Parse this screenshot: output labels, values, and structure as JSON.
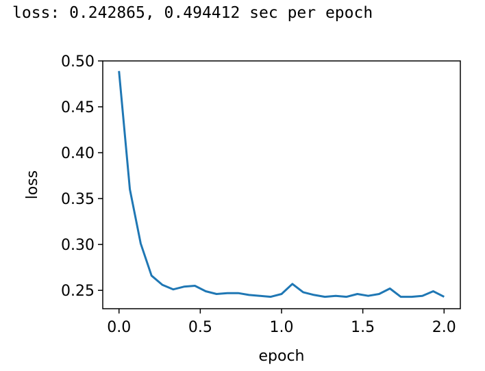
{
  "status": {
    "text": "loss: 0.242865, 0.494412 sec per epoch"
  },
  "chart_data": {
    "type": "line",
    "title": "",
    "xlabel": "epoch",
    "ylabel": "loss",
    "xlim": [
      -0.1,
      2.1
    ],
    "ylim": [
      0.23,
      0.5
    ],
    "xticks": [
      0.0,
      0.5,
      1.0,
      1.5,
      2.0
    ],
    "xtick_labels": [
      "0.0",
      "0.5",
      "1.0",
      "1.5",
      "2.0"
    ],
    "yticks": [
      0.25,
      0.3,
      0.35,
      0.4,
      0.45,
      0.5
    ],
    "ytick_labels": [
      "0.25",
      "0.30",
      "0.35",
      "0.40",
      "0.45",
      "0.50"
    ],
    "grid": false,
    "series_color": "#1f77b4",
    "series": [
      {
        "x": [
          0.0,
          0.0667,
          0.1333,
          0.2,
          0.2667,
          0.3333,
          0.4,
          0.4667,
          0.5333,
          0.6,
          0.6667,
          0.7333,
          0.8,
          0.8667,
          0.9333,
          1.0,
          1.0667,
          1.1333,
          1.2,
          1.2667,
          1.3333,
          1.4,
          1.4667,
          1.5333,
          1.6,
          1.6667,
          1.7333,
          1.8,
          1.8667,
          1.9333,
          2.0
        ],
        "y": [
          0.489,
          0.36,
          0.301,
          0.266,
          0.256,
          0.251,
          0.254,
          0.255,
          0.249,
          0.246,
          0.247,
          0.247,
          0.245,
          0.244,
          0.243,
          0.246,
          0.257,
          0.248,
          0.245,
          0.243,
          0.244,
          0.243,
          0.246,
          0.244,
          0.246,
          0.252,
          0.243,
          0.243,
          0.244,
          0.249,
          0.243
        ]
      }
    ]
  }
}
